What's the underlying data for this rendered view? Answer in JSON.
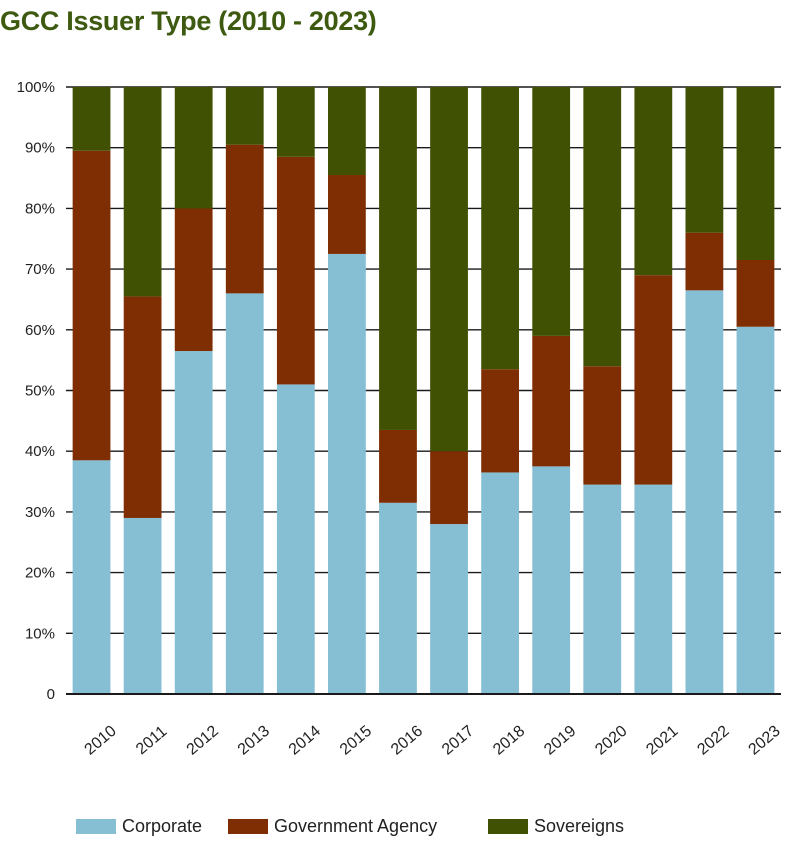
{
  "title": "GCC Issuer Type (2010 - 2023)",
  "colors": {
    "corporate": "#86bfd4",
    "government": "#7f2e04",
    "sovereigns": "#415104",
    "title": "#3d5a10"
  },
  "legend": [
    {
      "label": "Corporate",
      "color": "#86bfd4"
    },
    {
      "label": "Government Agency",
      "color": "#7f2e04"
    },
    {
      "label": "Sovereigns",
      "color": "#415104"
    }
  ],
  "chart_data": {
    "type": "bar",
    "stacked": true,
    "title": "GCC Issuer Type (2010 - 2023)",
    "xlabel": "",
    "ylabel": "",
    "ylim": [
      0,
      100
    ],
    "yticks": [
      "0",
      "10%",
      "20%",
      "30%",
      "40%",
      "50%",
      "60%",
      "70%",
      "80%",
      "90%",
      "100%"
    ],
    "grid": true,
    "legend_position": "bottom",
    "categories": [
      "2010",
      "2011",
      "2012",
      "2013",
      "2014",
      "2015",
      "2016",
      "2017",
      "2018",
      "2019",
      "2020",
      "2021",
      "2022",
      "2023"
    ],
    "series": [
      {
        "name": "Corporate",
        "color": "#86bfd4",
        "values": [
          38.5,
          29,
          56.5,
          66,
          51,
          72.5,
          31.5,
          28,
          36.5,
          37.5,
          34.5,
          34.5,
          66.5,
          60.5
        ]
      },
      {
        "name": "Government Agency",
        "color": "#7f2e04",
        "values": [
          51,
          36.5,
          23.5,
          24.5,
          37.5,
          13,
          12,
          12,
          17,
          21.5,
          19.5,
          34.5,
          9.5,
          11
        ]
      },
      {
        "name": "Sovereigns",
        "color": "#415104",
        "values": [
          10.5,
          34.5,
          20,
          9.5,
          11.5,
          14.5,
          56.5,
          60,
          46.5,
          41,
          46,
          31,
          24,
          28.5
        ]
      }
    ]
  }
}
